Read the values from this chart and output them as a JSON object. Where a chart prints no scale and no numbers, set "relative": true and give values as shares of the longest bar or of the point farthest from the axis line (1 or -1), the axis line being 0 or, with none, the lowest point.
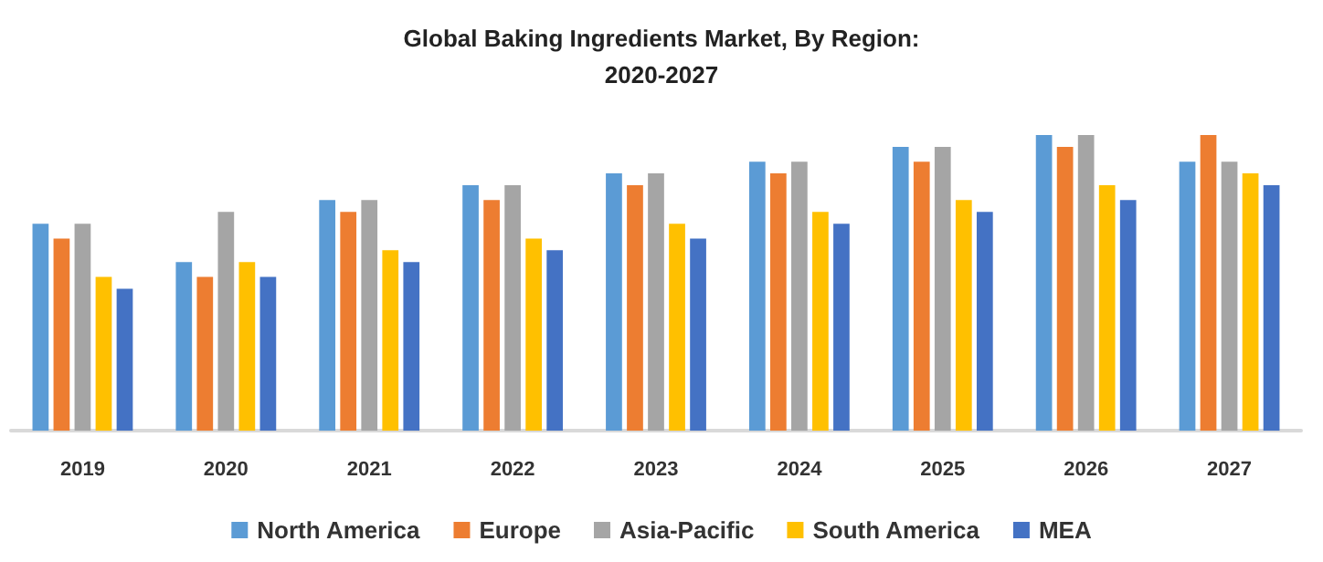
{
  "chart_data": {
    "type": "bar",
    "title": "Global Baking Ingredients Market, By Region:\n2020-2027",
    "relative": true,
    "legend": "bottom",
    "categories": [
      "2019",
      "2020",
      "2021",
      "2022",
      "2023",
      "2024",
      "2025",
      "2026",
      "2027"
    ],
    "series": [
      {
        "name": "North America",
        "color": "#5b9bd5",
        "values": [
          0.7,
          0.57,
          0.78,
          0.83,
          0.87,
          0.91,
          0.96,
          1,
          0.91
        ]
      },
      {
        "name": "Europe",
        "color": "#ed7d31",
        "values": [
          0.65,
          0.52,
          0.74,
          0.78,
          0.83,
          0.87,
          0.91,
          0.96,
          1
        ]
      },
      {
        "name": "Asia-Pacific",
        "color": "#a5a5a5",
        "values": [
          0.7,
          0.74,
          0.78,
          0.83,
          0.87,
          0.91,
          0.96,
          1,
          0.91
        ]
      },
      {
        "name": "South America",
        "color": "#ffc000",
        "values": [
          0.52,
          0.57,
          0.61,
          0.65,
          0.7,
          0.74,
          0.78,
          0.83,
          0.87
        ]
      },
      {
        "name": "MEA",
        "color": "#4472c4",
        "values": [
          0.48,
          0.52,
          0.57,
          0.61,
          0.65,
          0.7,
          0.74,
          0.78,
          0.83
        ]
      }
    ]
  }
}
